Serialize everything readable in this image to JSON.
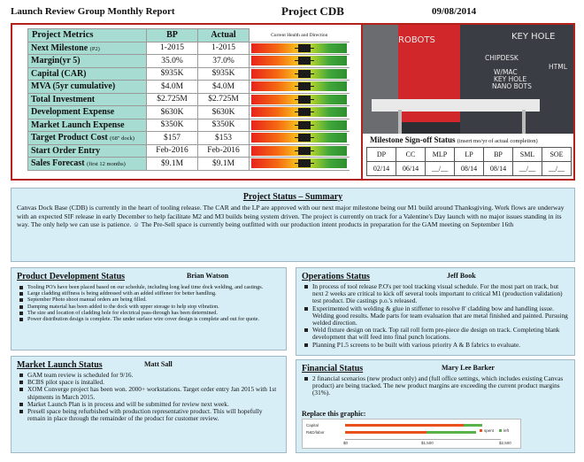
{
  "header": {
    "report_title": "Launch Review Group Monthly Report",
    "project": "Project CDB",
    "date": "09/08/2014"
  },
  "metrics": {
    "headers": {
      "name": "Project Metrics",
      "bp": "BP",
      "actual": "Actual",
      "health": "Current Health and Direction"
    },
    "rows": [
      {
        "name": "Next Milestone",
        "note": "(P2)",
        "bp": "1-2015",
        "actual": "1-2015",
        "health": 0.56
      },
      {
        "name": "Margin(yr 5)",
        "note": "",
        "bp": "35.0%",
        "actual": "37.0%",
        "health": 0.56
      },
      {
        "name": "Capital (CAR)",
        "note": "",
        "bp": "$935K",
        "actual": "$935K",
        "health": 0.56
      },
      {
        "name": "MVA (5yr cumulative)",
        "note": "",
        "bp": "$4.0M",
        "actual": "$4.0M",
        "health": 0.56
      },
      {
        "name": "Total Investment",
        "note": "",
        "bp": "$2.725M",
        "actual": "$2.725M",
        "health": 0.56
      },
      {
        "name": "Development Expense",
        "note": "",
        "bp": "$630K",
        "actual": "$630K",
        "health": 0.56
      },
      {
        "name": "Market Launch Expense",
        "note": "",
        "bp": "$350K",
        "actual": "$350K",
        "health": 0.56
      },
      {
        "name": "Target Product Cost",
        "note": "(68\" dock)",
        "bp": "$157",
        "actual": "$153",
        "health": 0.56
      },
      {
        "name": "Start Order Entry",
        "note": "",
        "bp": "Feb-2016",
        "actual": "Feb-2016",
        "health": 0.56
      },
      {
        "name": "Sales Forecast",
        "note": "(first 12 months)",
        "bp": "$9.1M",
        "actual": "$9.1M",
        "health": 0.56
      }
    ]
  },
  "photo": {
    "chalk": [
      "ROBOTS",
      "KEY HOLE",
      "CHIPDESK",
      "W/MAC",
      "KEY HOLE",
      "NANO BOTS",
      "HTML"
    ]
  },
  "milestone": {
    "title": "Milestone Sign-off Status",
    "note": "(insert mo/yr of actual completion)",
    "codes": [
      "DP",
      "CC",
      "MLP",
      "LP",
      "BP",
      "SML",
      "SOE"
    ],
    "dates": [
      "02/14",
      "06/14",
      "__/__",
      "08/14",
      "08/14",
      "__/__",
      "__/__"
    ]
  },
  "summary": {
    "title": "Project Status – Summary",
    "text": "Canvas Dock Base (CDB) is currently in the heart of tooling release.  The CAR and the LP are approved with our next major milestone being our M1 build around Thanksgiving.  Work flows are underway with an expected SIF release in early December to help facilitate M2 and M3 builds being system driven.  The project is currently on track for a Valentine's Day launch with no major issues standing in its way.  The only help we can use is patience. ☺ The Pre-Sell space is currently being outfitted with our production intent products in preparation for the GAM meeting on September 16th"
  },
  "product_dev": {
    "title": "Product Development Status",
    "owner": "Brian Watson",
    "items": [
      "Tooling PO's have been placed based on our schedule, including long lead time dock welding, and castings.",
      "Large cladding stiffness is being addressed with an added stiffener for better handling.",
      "September Photo shoot manual orders are being filled.",
      "Damping material has been added to the dock with upper storage to help stop vibration.",
      "The size and location of cladding hole for electrical pass-through has been determined.",
      "Power distribution design is complete. The under surface wire cover design is complete and out for quote."
    ]
  },
  "operations": {
    "title": "Operations Status",
    "owner": "Jeff Book",
    "items": [
      "In process of tool release P.O's per tool tracking visual schedule.  For the most part on track, but next 2 weeks are critical to kick off several tools important to critical M1 (production validation) test product.  Die castings p.o.'s released.",
      "Experimented with welding & glue  in stiffener to resolve 8' cladding bow and handling issue.  Welding good results.  Made parts for team evaluation that are metal finished and painted.  Pursuing welded direction.",
      "Weld fixture design on track.  Top rail roll form pre-piece die design on track.  Completing blank development that will feed into final punch locations.",
      "Planning P1.5 screens to be built with various priority A & B fabrics to evaluate."
    ]
  },
  "market_launch": {
    "title": "Market Launch Status",
    "owner": "Matt Sall",
    "items": [
      "GAM team review is scheduled for 9/16.",
      "BCBS pilot space is installed.",
      "XOM Converge project has been won.  2000+ workstations.  Target order entry Jan 2015 with 1st shipments in March 2015.",
      "Market Launch Plan is in process and will be submitted for review next week.",
      "Presell space being refurbished with production representative product.  This will hopefully remain in place through the remainder of the product for customer review."
    ]
  },
  "financial": {
    "title": "Financial Status",
    "owner": "Mary Lee Barker",
    "items": [
      "2 financial scenarios (new product only) and (full office settings, which includes existing Canvas product) are being tracked.  The new product margins are exceeding the current product margins (31%)."
    ],
    "replace_label": "Replace this graphic:"
  },
  "chart_data": {
    "type": "bar",
    "categories": [
      "Capital",
      "R&D/labor"
    ],
    "series": [
      {
        "name": "spent",
        "values": [
          1900,
          1300
        ],
        "color": "#e8511b"
      },
      {
        "name": "left",
        "values": [
          300,
          800
        ],
        "color": "#59b24a"
      }
    ],
    "xlim": [
      0,
      2500
    ],
    "tick_labels": [
      "$0",
      "$1,500",
      "$2,500"
    ],
    "colors": {
      "spent": "#e8511b",
      "left": "#59b24a"
    }
  }
}
